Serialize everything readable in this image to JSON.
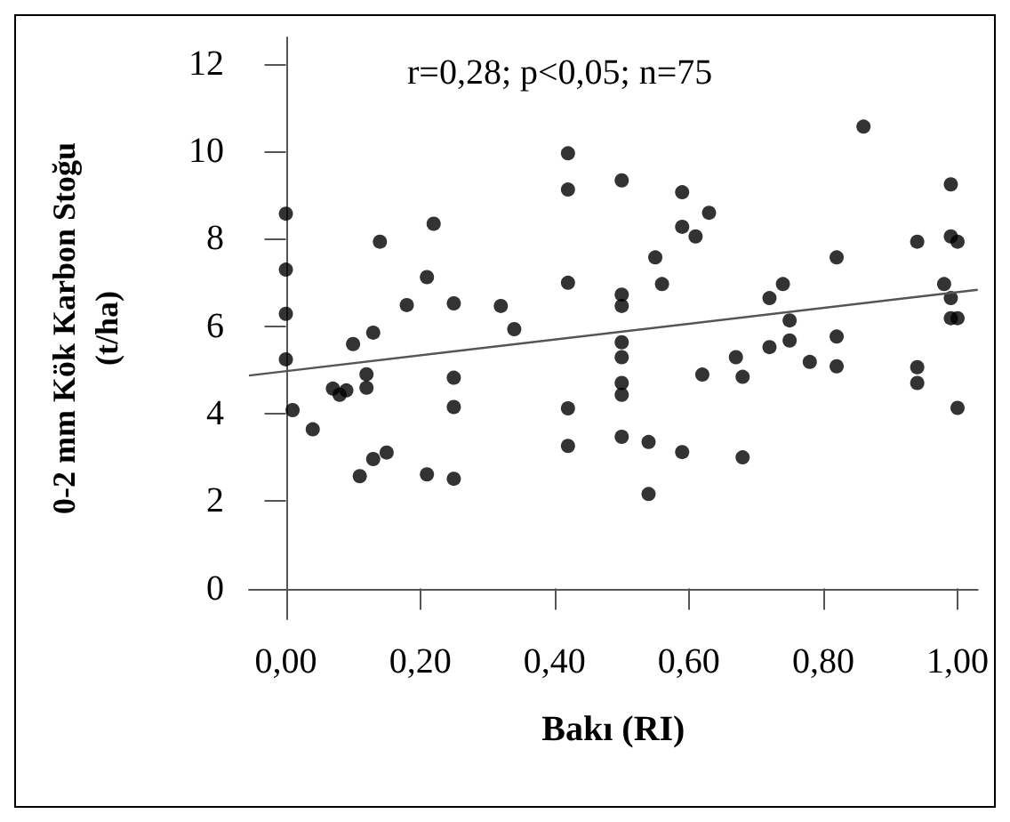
{
  "chart_data": {
    "type": "scatter",
    "xlabel": "Bakı (RI)",
    "ylabel": "0-2 mm Kök Karbon Stoğu\n(t/ha)",
    "annotations": [
      "r=0,28; p<0,05; n=75"
    ],
    "xlim": [
      -0.055,
      1.03
    ],
    "ylim": [
      -0.7,
      12.6
    ],
    "xticks": [
      {
        "value": 0,
        "label": "0,00"
      },
      {
        "value": 0.2,
        "label": "0,20"
      },
      {
        "value": 0.4,
        "label": "0,40"
      },
      {
        "value": 0.6,
        "label": "0,60"
      },
      {
        "value": 0.8,
        "label": "0,80"
      },
      {
        "value": 1,
        "label": "1,00"
      }
    ],
    "yticks": [
      0,
      2,
      4,
      6,
      8,
      10,
      12
    ],
    "grid": false,
    "marker": "circle",
    "series": [
      {
        "color": "#000000",
        "x": [
          0,
          0,
          0,
          0,
          0.01,
          0.04,
          0.07,
          0.08,
          0.09,
          0.1,
          0.11,
          0.12,
          0.12,
          0.13,
          0.13,
          0.14,
          0.15,
          0.18,
          0.21,
          0.21,
          0.22,
          0.25,
          0.25,
          0.25,
          0.25,
          0.32,
          0.34,
          0.42,
          0.42,
          0.42,
          0.42,
          0.42,
          0.5,
          0.5,
          0.5,
          0.5,
          0.5,
          0.5,
          0.5,
          0.5,
          0.54,
          0.54,
          0.55,
          0.56,
          0.59,
          0.59,
          0.59,
          0.61,
          0.62,
          0.63,
          0.67,
          0.68,
          0.68,
          0.72,
          0.72,
          0.74,
          0.75,
          0.75,
          0.78,
          0.82,
          0.82,
          0.82,
          0.86,
          0.94,
          0.94,
          0.94,
          0.98,
          0.99,
          0.99,
          1.0,
          0.99,
          0.99,
          1.0,
          1.0
        ],
        "values": [
          8.57,
          7.29,
          6.28,
          5.24,
          4.08,
          3.64,
          4.57,
          4.43,
          4.53,
          5.59,
          2.57,
          4.9,
          4.59,
          5.85,
          2.96,
          7.93,
          3.11,
          6.48,
          7.12,
          2.61,
          8.34,
          6.52,
          4.82,
          4.15,
          2.51,
          6.46,
          5.93,
          9.95,
          9.12,
          6.99,
          4.12,
          3.26,
          9.33,
          6.72,
          6.46,
          5.63,
          5.29,
          4.7,
          4.43,
          3.47,
          3.35,
          2.16,
          7.57,
          6.96,
          9.06,
          8.27,
          3.12,
          8.05,
          4.89,
          8.59,
          5.29,
          4.84,
          3.0,
          6.64,
          5.52,
          6.96,
          6.13,
          5.67,
          5.18,
          7.57,
          5.76,
          5.08,
          10.56,
          7.93,
          5.06,
          4.7,
          6.96,
          9.24,
          8.05,
          7.93,
          6.64,
          6.18,
          6.18,
          4.13
        ]
      },
      {
        "type": "line",
        "color": "#555555",
        "line_style": "solid",
        "marker": "none",
        "x": [
          -0.055,
          1.03
        ],
        "values": [
          4.87,
          6.83
        ]
      }
    ]
  }
}
